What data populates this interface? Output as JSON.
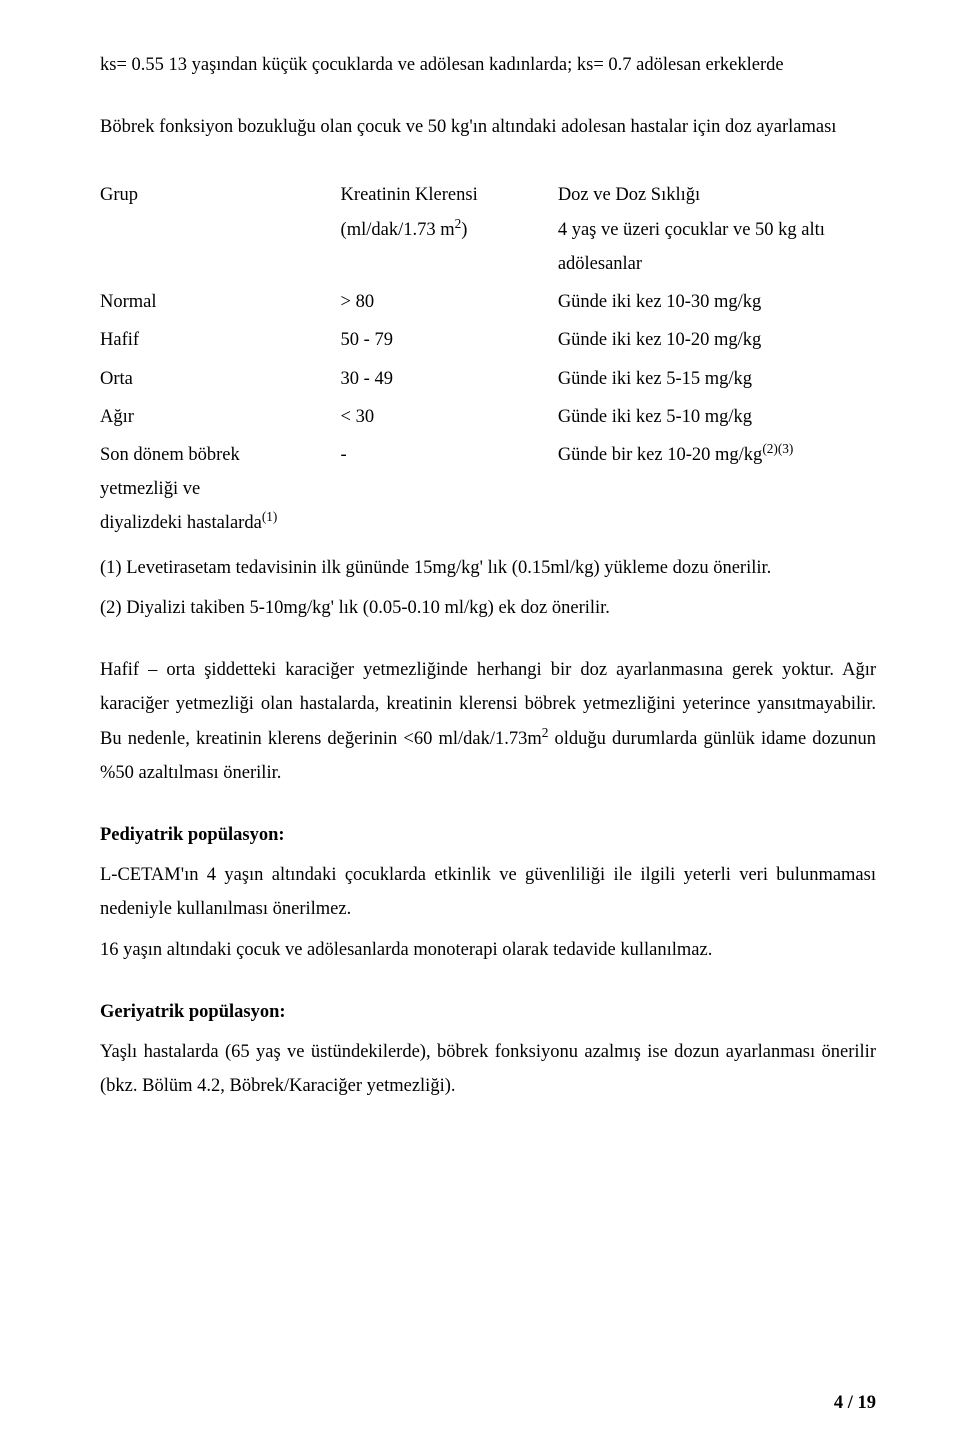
{
  "intro": {
    "line1": "ks= 0.55 13 yaşından küçük çocuklarda ve adölesan kadınlarda; ks= 0.7 adölesan erkeklerde",
    "line2": "Böbrek fonksiyon bozukluğu olan çocuk ve 50 kg'ın altındaki adolesan hastalar için doz ayarlaması"
  },
  "table": {
    "head": {
      "grup": "Grup",
      "kk_line1": "Kreatinin Klerensi",
      "kk_line2a": "(ml/dak/1.73 m",
      "kk_line2b": "2",
      "kk_line2c": ")",
      "doz_line1": "Doz ve Doz Sıklığı",
      "doz_line2": "4 yaş ve üzeri çocuklar ve 50 kg altı adölesanlar"
    },
    "rows": [
      {
        "g": "Normal",
        "k": "> 80",
        "d": "Günde iki kez 10-30 mg/kg"
      },
      {
        "g": "Hafif",
        "k": "50 - 79",
        "d": "Günde iki kez 10-20 mg/kg"
      },
      {
        "g": "Orta",
        "k": "30 - 49",
        "d": "Günde iki kez 5-15 mg/kg"
      },
      {
        "g": "Ağır",
        "k": "< 30",
        "d": "Günde iki kez 5-10 mg/kg"
      }
    ],
    "last": {
      "g1": "Son dönem böbrek",
      "g2": "yetmezliği ve",
      "g3a": "diyalizdeki hastalarda",
      "g3b": "(1)",
      "k": "-",
      "d1": "Günde bir kez 10-20 mg/kg",
      "d2": "(2)(3)"
    }
  },
  "notes": {
    "n1": "(1) Levetirasetam tedavisinin ilk gününde 15mg/kg' lık (0.15ml/kg) yükleme dozu önerilir.",
    "n2": "(2) Diyalizi takiben 5-10mg/kg' lık (0.05-0.10 ml/kg) ek doz önerilir."
  },
  "body": {
    "p1a": "Hafif – orta şiddetteki karaciğer yetmezliğinde herhangi bir doz ayarlanmasına gerek yoktur. Ağır karaciğer yetmezliği olan hastalarda, kreatinin klerensi böbrek yetmezliğini yeterince yansıtmayabilir. Bu nedenle, kreatinin klerens değerinin <60 ml/dak/1.73m",
    "p1sup": "2",
    "p1b": " olduğu durumlarda günlük idame dozunun %50 azaltılması önerilir."
  },
  "ped": {
    "title": "Pediyatrik popülasyon:",
    "p1": "L-CETAM'ın 4 yaşın altındaki çocuklarda etkinlik ve güvenliliği ile ilgili yeterli veri bulunmaması nedeniyle kullanılması önerilmez.",
    "p2": "16 yaşın altındaki çocuk ve adölesanlarda monoterapi olarak tedavide kullanılmaz."
  },
  "ger": {
    "title": "Geriyatrik popülasyon:",
    "p1": "Yaşlı hastalarda (65 yaş ve üstündekilerde), böbrek fonksiyonu azalmış ise dozun ayarlanması önerilir (bkz. Bölüm 4.2, Böbrek/Karaciğer yetmezliği)."
  },
  "pagenum": "4 / 19"
}
